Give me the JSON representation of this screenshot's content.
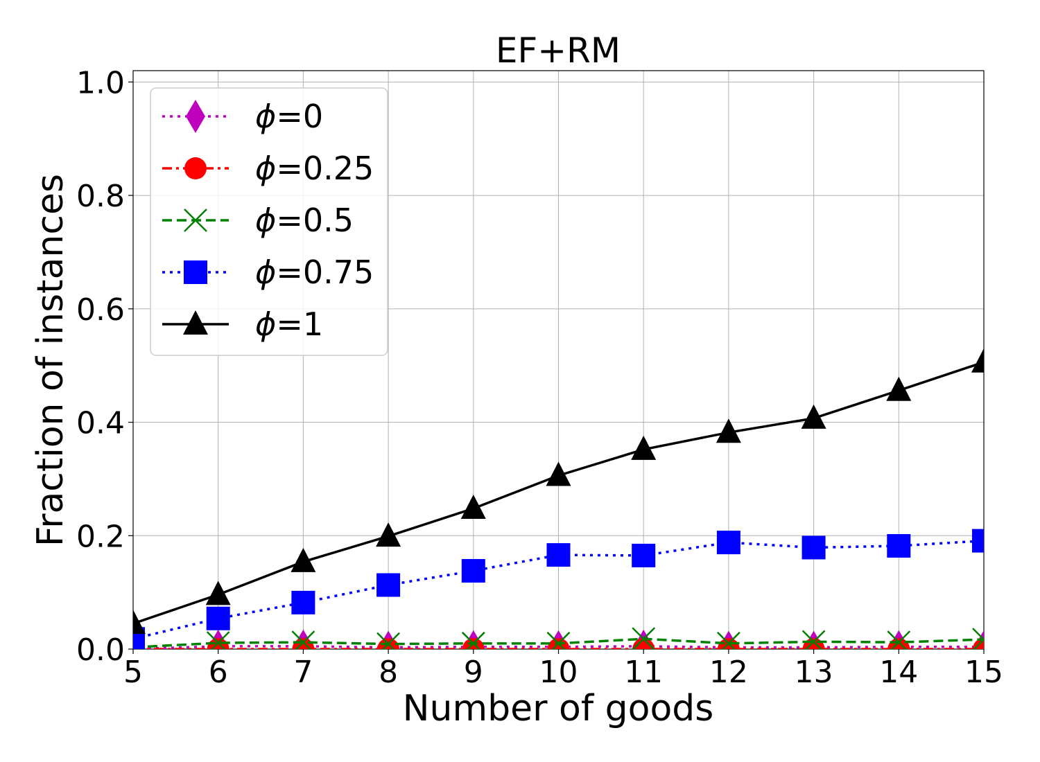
{
  "chart_data": {
    "type": "line",
    "title": "EF+RM",
    "xlabel": "Number of goods",
    "ylabel": "Fraction of instances",
    "xlim": [
      5,
      15
    ],
    "ylim": [
      0,
      1.02
    ],
    "xticks": [
      5,
      6,
      7,
      8,
      9,
      10,
      11,
      12,
      13,
      14,
      15
    ],
    "xtick_labels": [
      "5",
      "6",
      "7",
      "8",
      "9",
      "10",
      "11",
      "12",
      "13",
      "14",
      "15"
    ],
    "yticks": [
      0,
      0.2,
      0.4,
      0.6,
      0.8,
      1.0
    ],
    "ytick_labels": [
      "0.0",
      "0.2",
      "0.4",
      "0.6",
      "0.8",
      "1.0"
    ],
    "grid": true,
    "legend_position": "top-left",
    "x": [
      5,
      6,
      7,
      8,
      9,
      10,
      11,
      12,
      13,
      14,
      15
    ],
    "series": [
      {
        "name": "φ=0",
        "legend_prefix": "ϕ",
        "legend_suffix": "=0",
        "color": "#bf00bf",
        "linestyle": "dotted",
        "marker": "diamond",
        "values": [
          0.0,
          0.005,
          0.005,
          0.003,
          0.004,
          0.004,
          0.005,
          0.003,
          0.003,
          0.004,
          0.004
        ]
      },
      {
        "name": "φ=0.25",
        "legend_prefix": "ϕ",
        "legend_suffix": "=0.25",
        "color": "#ff0000",
        "linestyle": "dashdot",
        "marker": "circle",
        "values": [
          0.0,
          0.0,
          0.0,
          0.0,
          0.0,
          0.0,
          0.0,
          0.0,
          0.0,
          0.0,
          0.0
        ]
      },
      {
        "name": "φ=0.5",
        "legend_prefix": "ϕ",
        "legend_suffix": "=0.5",
        "color": "#008000",
        "linestyle": "dashed",
        "marker": "x",
        "values": [
          0.003,
          0.011,
          0.012,
          0.009,
          0.01,
          0.01,
          0.018,
          0.01,
          0.013,
          0.012,
          0.017
        ]
      },
      {
        "name": "φ=0.75",
        "legend_prefix": "ϕ",
        "legend_suffix": "=0.75",
        "color": "#0000ff",
        "linestyle": "dotted",
        "marker": "square",
        "values": [
          0.018,
          0.054,
          0.082,
          0.113,
          0.138,
          0.166,
          0.165,
          0.188,
          0.179,
          0.182,
          0.191
        ]
      },
      {
        "name": "φ=1",
        "legend_prefix": "ϕ",
        "legend_suffix": "=1",
        "color": "#000000",
        "linestyle": "solid",
        "marker": "triangle",
        "values": [
          0.045,
          0.096,
          0.154,
          0.199,
          0.248,
          0.306,
          0.352,
          0.382,
          0.407,
          0.456,
          0.506
        ]
      }
    ]
  }
}
